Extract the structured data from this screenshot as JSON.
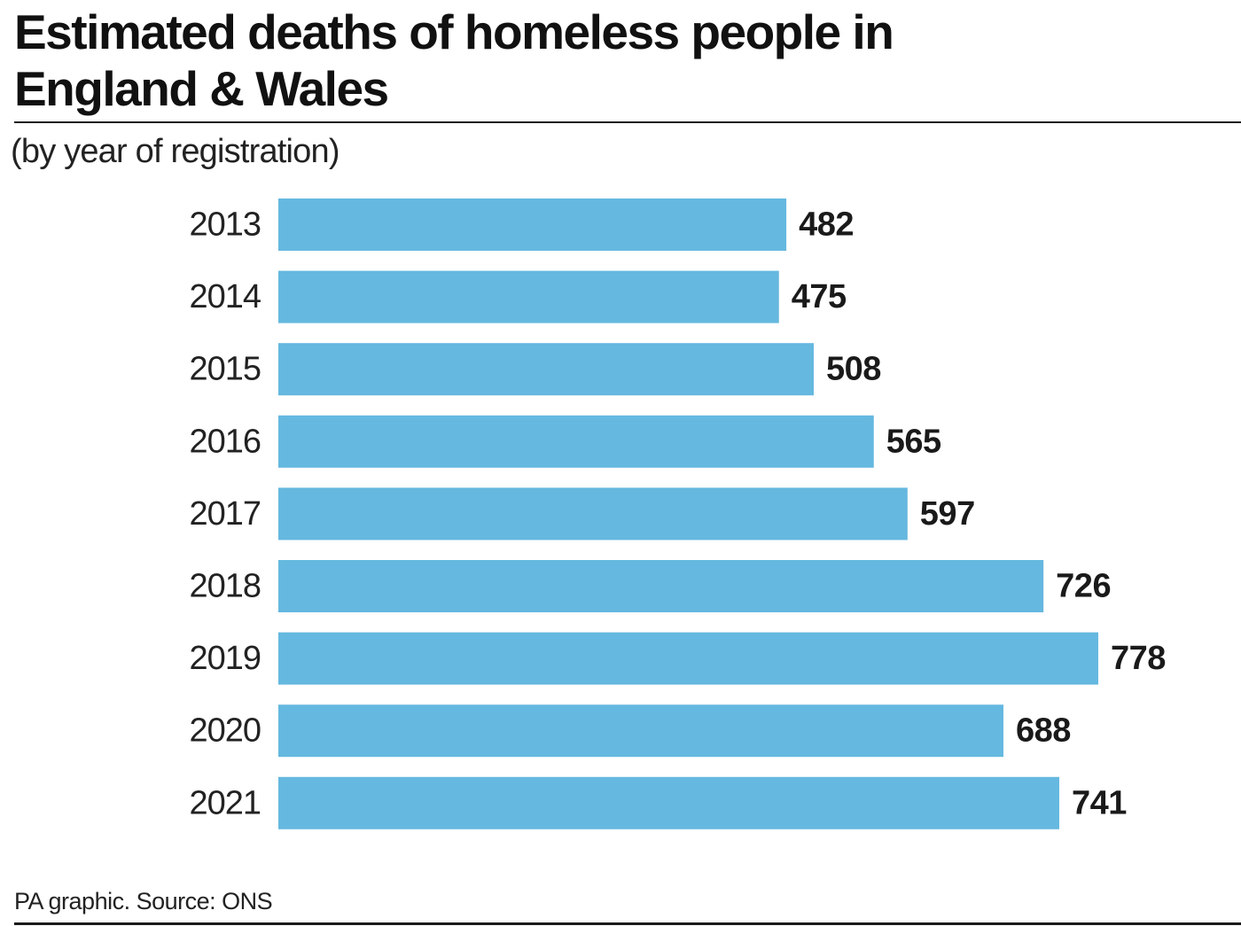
{
  "header": {
    "title": "Estimated deaths of homeless people in England & Wales",
    "subtitle": "(by year of registration)"
  },
  "footer": {
    "source": "PA graphic. Source: ONS"
  },
  "colors": {
    "bar": "#65b8df",
    "text": "#1a1a1a"
  },
  "chart_data": {
    "type": "bar",
    "orientation": "horizontal",
    "title": "Estimated deaths of homeless people in England & Wales",
    "subtitle": "(by year of registration)",
    "categories": [
      "2013",
      "2014",
      "2015",
      "2016",
      "2017",
      "2018",
      "2019",
      "2020",
      "2021"
    ],
    "values": [
      482,
      475,
      508,
      565,
      597,
      726,
      778,
      688,
      741
    ],
    "xlim": [
      0,
      778
    ],
    "grid": false,
    "legend": "none",
    "data_labels": true
  }
}
